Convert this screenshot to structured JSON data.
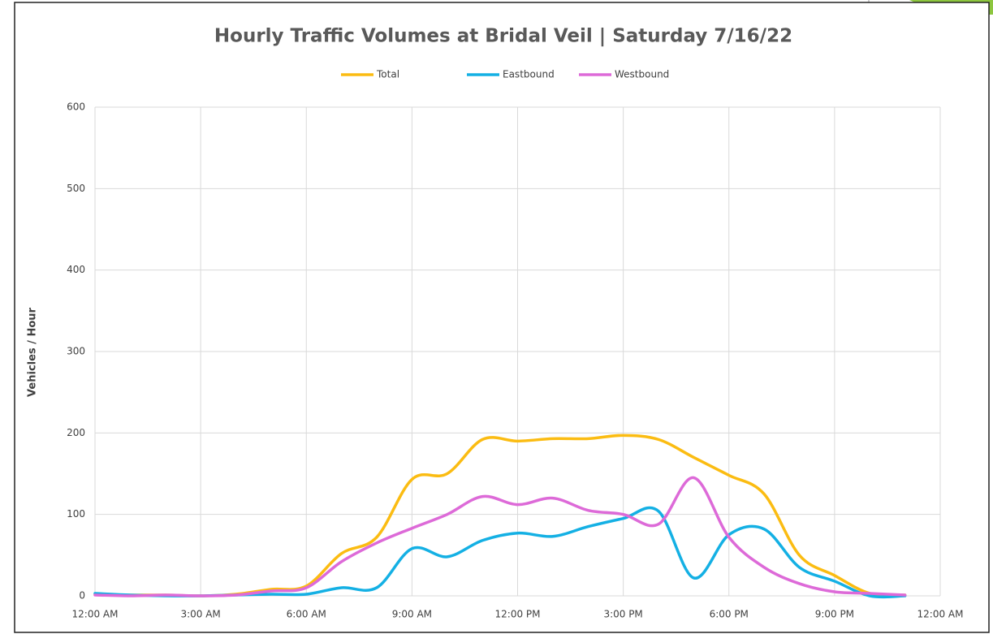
{
  "chart_data": {
    "type": "line",
    "title": "Hourly Traffic Volumes at Bridal Veil | Saturday 7/16/22",
    "y_label": "Vehicles / Hour",
    "x": [
      0,
      1,
      2,
      3,
      4,
      5,
      6,
      7,
      8,
      9,
      10,
      11,
      12,
      13,
      14,
      15,
      16,
      17,
      18,
      19,
      20,
      21,
      22,
      23
    ],
    "series": [
      {
        "name": "Total",
        "color": "#fbbc12",
        "values": [
          2,
          1,
          1,
          0,
          2,
          8,
          12,
          52,
          72,
          143,
          150,
          192,
          190,
          193,
          193,
          197,
          192,
          170,
          148,
          125,
          50,
          25,
          3,
          1
        ]
      },
      {
        "name": "Eastbound",
        "color": "#14b0e4",
        "values": [
          3,
          1,
          0,
          0,
          1,
          2,
          2,
          10,
          10,
          58,
          48,
          68,
          77,
          73,
          85,
          95,
          104,
          22,
          75,
          82,
          35,
          18,
          0,
          0
        ]
      },
      {
        "name": "Westbound",
        "color": "#dd6ad8",
        "values": [
          1,
          0,
          1,
          0,
          1,
          6,
          10,
          42,
          65,
          83,
          100,
          122,
          112,
          120,
          105,
          100,
          88,
          145,
          72,
          35,
          15,
          5,
          3,
          1
        ]
      }
    ],
    "xlim": [
      0,
      24
    ],
    "xticks": [
      {
        "value": 0,
        "label": "12:00 AM"
      },
      {
        "value": 3,
        "label": "3:00 AM"
      },
      {
        "value": 6,
        "label": "6:00 AM"
      },
      {
        "value": 9,
        "label": "9:00 AM"
      },
      {
        "value": 12,
        "label": "12:00 PM"
      },
      {
        "value": 15,
        "label": "3:00 PM"
      },
      {
        "value": 18,
        "label": "6:00 PM"
      },
      {
        "value": 21,
        "label": "9:00 PM"
      },
      {
        "value": 24,
        "label": "12:00 AM"
      }
    ],
    "ylim": [
      0,
      600
    ],
    "yticks": [
      0,
      100,
      200,
      300,
      400,
      500,
      600
    ],
    "grid": true,
    "legend": "top"
  }
}
